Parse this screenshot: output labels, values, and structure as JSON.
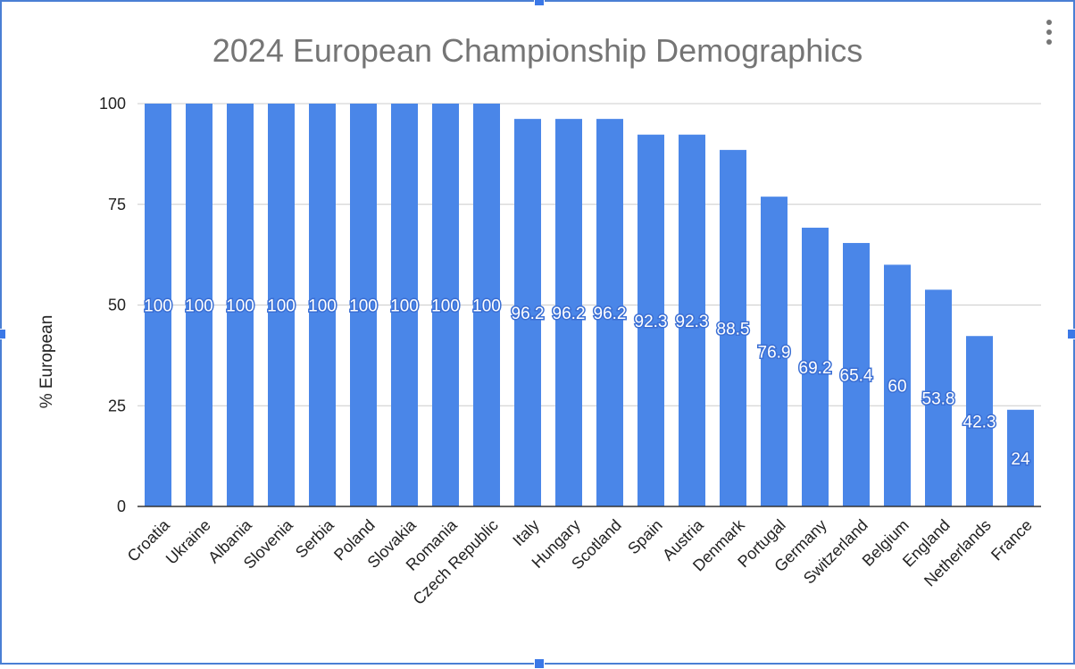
{
  "chart_data": {
    "type": "bar",
    "title": "2024 European Championship Demographics",
    "xlabel": "",
    "ylabel": "% European",
    "ylim": [
      0,
      100
    ],
    "yticks": [
      0,
      25,
      50,
      75,
      100
    ],
    "grid": true,
    "legend": "none",
    "bar_color": "#4a86e8",
    "categories": [
      "Croatia",
      "Ukraine",
      "Albania",
      "Slovenia",
      "Serbia",
      "Poland",
      "Slovakia",
      "Romania",
      "Czech Republic",
      "Italy",
      "Hungary",
      "Scotland",
      "Spain",
      "Austria",
      "Denmark",
      "Portugal",
      "Germany",
      "Switzerland",
      "Belgium",
      "England",
      "Netherlands",
      "France"
    ],
    "values": [
      100,
      100,
      100,
      100,
      100,
      100,
      100,
      100,
      100,
      96.2,
      96.2,
      96.2,
      92.3,
      92.3,
      88.5,
      76.9,
      69.2,
      65.4,
      60,
      53.8,
      42.3,
      24
    ],
    "data_labels": [
      "100",
      "100",
      "100",
      "100",
      "100",
      "100",
      "100",
      "100",
      "100",
      "96.2",
      "96.2",
      "96.2",
      "92.3",
      "92.3",
      "88.5",
      "76.9",
      "69.2",
      "65.4",
      "60",
      "53.8",
      "42.3",
      "24"
    ]
  },
  "menu": {
    "icon": "more-vert-icon"
  },
  "colors": {
    "selection_border": "#4a7fd4",
    "title": "#757575",
    "gridline": "#cccccc",
    "axis": "#333333"
  }
}
